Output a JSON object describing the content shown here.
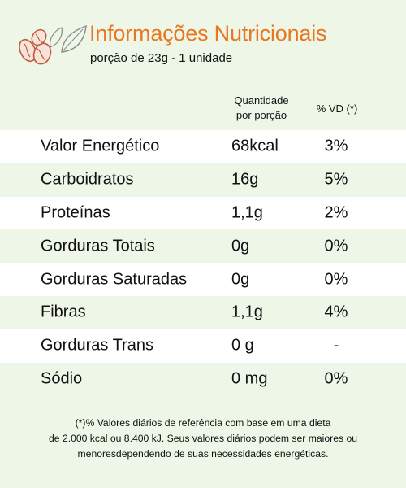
{
  "header": {
    "title": "Informações Nutricionais",
    "subtitle": "porção de 23g - 1 unidade"
  },
  "table": {
    "columns": {
      "quantity_line1": "Quantidade",
      "quantity_line2": "por porção",
      "daily_value": "% VD (*)"
    },
    "rows": [
      {
        "name": "Valor Energético",
        "quantity": "68kcal",
        "vd": "3%"
      },
      {
        "name": "Carboidratos",
        "quantity": "16g",
        "vd": "5%"
      },
      {
        "name": "Proteínas",
        "quantity": "1,1g",
        "vd": "2%"
      },
      {
        "name": "Gorduras Totais",
        "quantity": "0g",
        "vd": "0%"
      },
      {
        "name": "Gorduras Saturadas",
        "quantity": "0g",
        "vd": "0%"
      },
      {
        "name": "Fibras",
        "quantity": "1,1g",
        "vd": "4%"
      },
      {
        "name": "Gorduras Trans",
        "quantity": "0 g",
        "vd": "-"
      },
      {
        "name": "Sódio",
        "quantity": "0 mg",
        "vd": "0%"
      }
    ]
  },
  "footnote": {
    "line1": "(*)% Valores diários de referência com base em uma dieta",
    "line2": "de 2.000 kcal ou 8.400 kJ. Seus valores diários podem ser maiores ou",
    "line3": "menoresdependendo de suas necessidades energéticas."
  },
  "colors": {
    "background": "#eef6e8",
    "title": "#e87722",
    "row_alt": "#ffffff",
    "logo_stroke": "#c05a3c",
    "leaf_stroke": "#8a8a8a"
  },
  "icons": {
    "logo": "nuts-and-leaves-icon"
  }
}
